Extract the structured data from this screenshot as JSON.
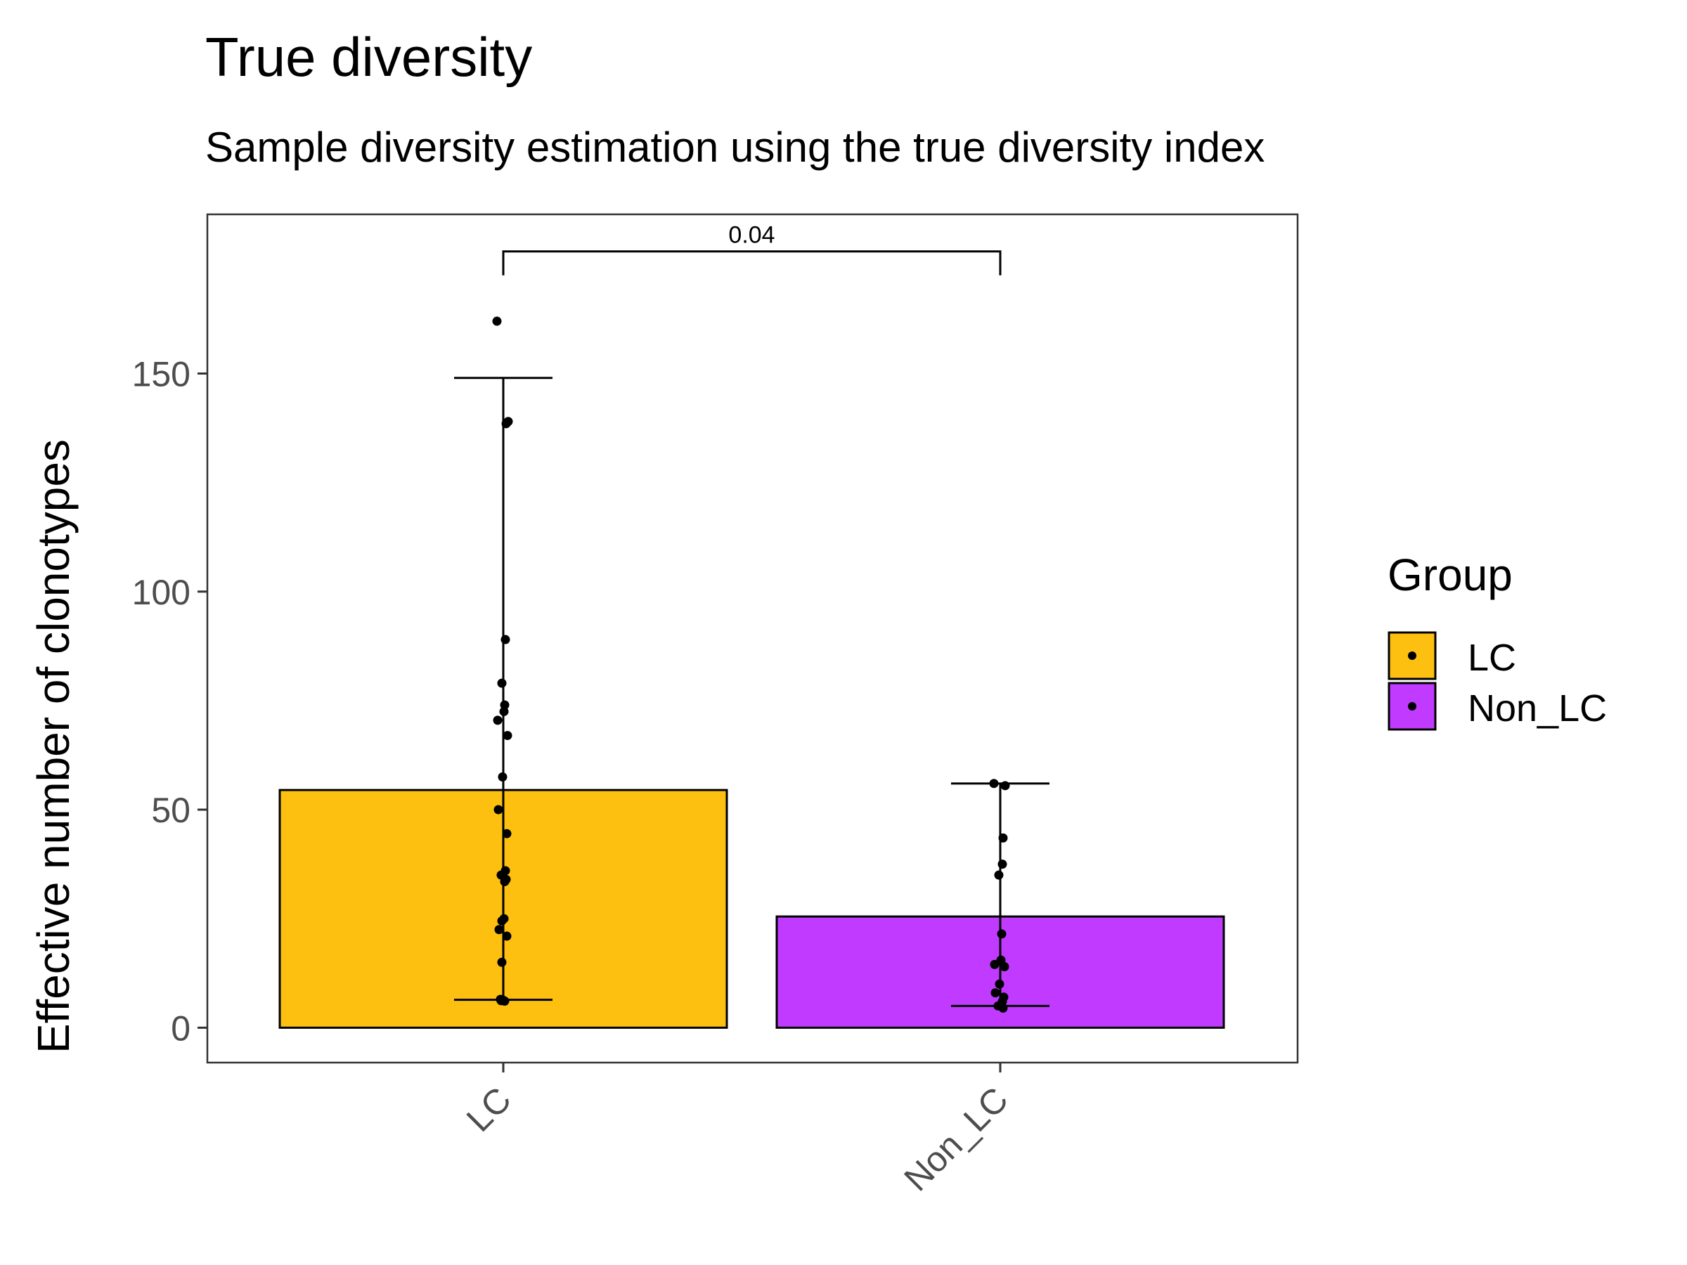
{
  "chart_data": {
    "type": "bar",
    "title": "True diversity",
    "subtitle": "Sample diversity estimation using the true diversity index",
    "xlabel": "",
    "ylabel": "Effective number of clonotypes",
    "categories": [
      "LC",
      "Non_LC"
    ],
    "values": [
      54.5,
      25.5
    ],
    "error_bars": [
      {
        "category": "LC",
        "low": 6.4,
        "high": 149.0
      },
      {
        "category": "Non_LC",
        "low": 5.0,
        "high": 56.0
      }
    ],
    "points": [
      {
        "category": "LC",
        "values": [
          162,
          139,
          138.5,
          89,
          79,
          74,
          72.5,
          70.5,
          67,
          57.5,
          50,
          44.5,
          36,
          35,
          34,
          33.5,
          25,
          24.5,
          22.5,
          21,
          15,
          6.5,
          6.3,
          6.2,
          6.1
        ]
      },
      {
        "category": "Non_LC",
        "values": [
          56,
          55.5,
          43.5,
          37.5,
          35,
          21.5,
          15.5,
          14.5,
          14,
          10,
          8,
          7,
          6,
          5,
          4.5
        ]
      }
    ],
    "yticks": [
      0,
      50,
      100,
      150
    ],
    "ylim": [
      -8,
      186.5
    ],
    "significance": {
      "from": "LC",
      "to": "Non_LC",
      "label": "0.04",
      "y": 178
    },
    "colors": {
      "LC": "#FDC010",
      "Non_LC": "#C03BFF"
    },
    "legend": {
      "title": "Group",
      "entries": [
        "LC",
        "Non_LC"
      ],
      "position": "right"
    },
    "grid": false
  }
}
